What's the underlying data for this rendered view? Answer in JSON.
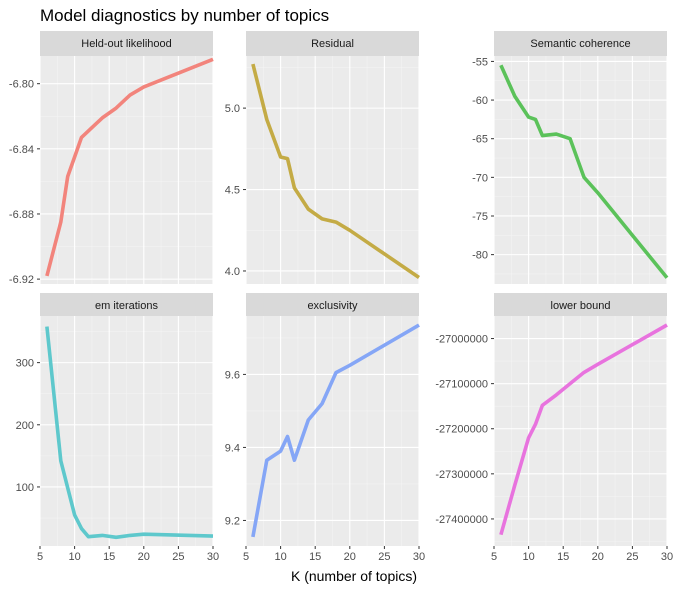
{
  "title": "Model diagnostics by number of topics",
  "xlabel": "K (number of topics)",
  "chart_data": [
    {
      "type": "line",
      "strip": "Held-out likelihood",
      "color": "#F2847C",
      "x": [
        6,
        8,
        9,
        10,
        11,
        12,
        14,
        16,
        18,
        20,
        30
      ],
      "y": [
        -6.918,
        -6.885,
        -6.857,
        -6.845,
        -6.833,
        -6.829,
        -6.821,
        -6.815,
        -6.807,
        -6.802,
        -6.785
      ],
      "xlim": [
        5,
        30
      ],
      "ylim": [
        -6.923,
        -6.783
      ],
      "xticks": [
        5,
        10,
        15,
        20,
        25,
        30
      ],
      "yticks": [
        -6.92,
        -6.88,
        -6.84,
        -6.8
      ],
      "yticklabels": [
        "-6.92",
        "-6.88",
        "-6.84",
        "-6.80"
      ],
      "show_xaxis": false
    },
    {
      "type": "line",
      "strip": "Residual",
      "color": "#C4AB45",
      "x": [
        6,
        8,
        10,
        11,
        12,
        14,
        16,
        18,
        20,
        30
      ],
      "y": [
        5.27,
        4.93,
        4.7,
        4.69,
        4.51,
        4.38,
        4.32,
        4.3,
        4.25,
        3.96
      ],
      "xlim": [
        5,
        30
      ],
      "ylim": [
        3.92,
        5.32
      ],
      "xticks": [
        5,
        10,
        15,
        20,
        25,
        30
      ],
      "yticks": [
        4.0,
        4.5,
        5.0
      ],
      "yticklabels": [
        "4.0",
        "4.5",
        "5.0"
      ],
      "show_xaxis": false
    },
    {
      "type": "line",
      "strip": "Semantic coherence",
      "color": "#5BC25A",
      "x": [
        6,
        8,
        10,
        11,
        12,
        14,
        16,
        18,
        20,
        30
      ],
      "y": [
        -55.5,
        -59.5,
        -62.2,
        -62.5,
        -64.6,
        -64.4,
        -65.0,
        -70.0,
        -72.0,
        -83.0
      ],
      "xlim": [
        5,
        30
      ],
      "ylim": [
        -83.8,
        -54.3
      ],
      "xticks": [
        5,
        10,
        15,
        20,
        25,
        30
      ],
      "yticks": [
        -80,
        -75,
        -70,
        -65,
        -60,
        -55
      ],
      "yticklabels": [
        "-80",
        "-75",
        "-70",
        "-65",
        "-60",
        "-55"
      ],
      "show_xaxis": false
    },
    {
      "type": "line",
      "strip": "em iterations",
      "color": "#5EC8CC",
      "x": [
        6,
        8,
        10,
        11,
        12,
        14,
        16,
        18,
        20,
        30
      ],
      "y": [
        358,
        142,
        55,
        33,
        20,
        22,
        19,
        22,
        24,
        21
      ],
      "xlim": [
        5,
        30
      ],
      "ylim": [
        5,
        375
      ],
      "xticks": [
        5,
        10,
        15,
        20,
        25,
        30
      ],
      "yticks": [
        100,
        200,
        300
      ],
      "yticklabels": [
        "100",
        "200",
        "300"
      ],
      "show_xaxis": true
    },
    {
      "type": "line",
      "strip": "exclusivity",
      "color": "#85A6F6",
      "x": [
        6,
        8,
        10,
        11,
        12,
        14,
        16,
        18,
        20,
        30
      ],
      "y": [
        9.155,
        9.365,
        9.39,
        9.43,
        9.365,
        9.475,
        9.52,
        9.605,
        9.625,
        9.735
      ],
      "xlim": [
        5,
        30
      ],
      "ylim": [
        9.13,
        9.76
      ],
      "xticks": [
        5,
        10,
        15,
        20,
        25,
        30
      ],
      "yticks": [
        9.2,
        9.4,
        9.6
      ],
      "yticklabels": [
        "9.2",
        "9.4",
        "9.6"
      ],
      "show_xaxis": true
    },
    {
      "type": "line",
      "strip": "lower bound",
      "color": "#E873DE",
      "x": [
        6,
        8,
        10,
        11,
        12,
        14,
        16,
        18,
        20,
        30
      ],
      "y": [
        -27435000,
        -27325000,
        -27220000,
        -27190000,
        -27148000,
        -27125000,
        -27100000,
        -27075000,
        -27057000,
        -26970000
      ],
      "xlim": [
        5,
        30
      ],
      "ylim": [
        -27460000,
        -26950000
      ],
      "xticks": [
        5,
        10,
        15,
        20,
        25,
        30
      ],
      "yticks": [
        -27400000,
        -27300000,
        -27200000,
        -27100000,
        -27000000
      ],
      "yticklabels": [
        "-27400000",
        "-27300000",
        "-27200000",
        "-27100000",
        "-27000000"
      ],
      "show_xaxis": true
    }
  ]
}
